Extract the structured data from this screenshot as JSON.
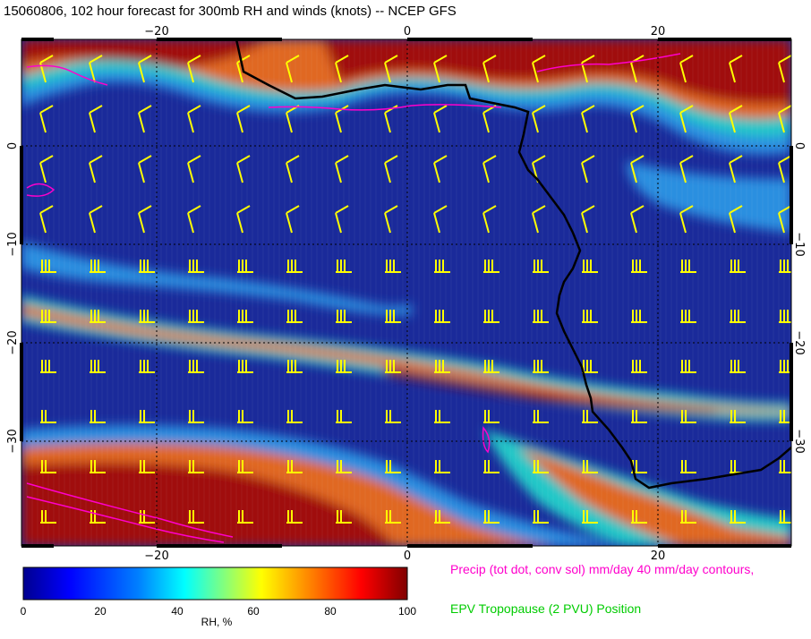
{
  "title": "15060806, 102 hour forecast for 300mb RH and winds (knots) -- NCEP GFS",
  "map": {
    "x_ticks": [
      "−20",
      "0",
      "20"
    ],
    "y_ticks": [
      "0",
      "−10",
      "−20",
      "−30"
    ],
    "background_color": "#1a2a9a",
    "band_colors": [
      "#2a8fe0",
      "#22c8c8",
      "#e8e040",
      "#e06820",
      "#a01010"
    ],
    "coast_color": "#000000",
    "barb_color": "#ffff00",
    "contour_color": "#ff00cc"
  },
  "colorbar": {
    "title": "RH, %",
    "ticks": [
      "0",
      "20",
      "40",
      "60",
      "80",
      "100"
    ],
    "colors": [
      "#00008f",
      "#0000ff",
      "#0080ff",
      "#00ffff",
      "#80ff80",
      "#ffff00",
      "#ff8000",
      "#ff0000",
      "#800000"
    ]
  },
  "legend": {
    "precip": "Precip (tot dot, conv sol) mm/day 40 mm/day contours,",
    "epv": "EPV Tropopause (2 PVU) Position"
  }
}
